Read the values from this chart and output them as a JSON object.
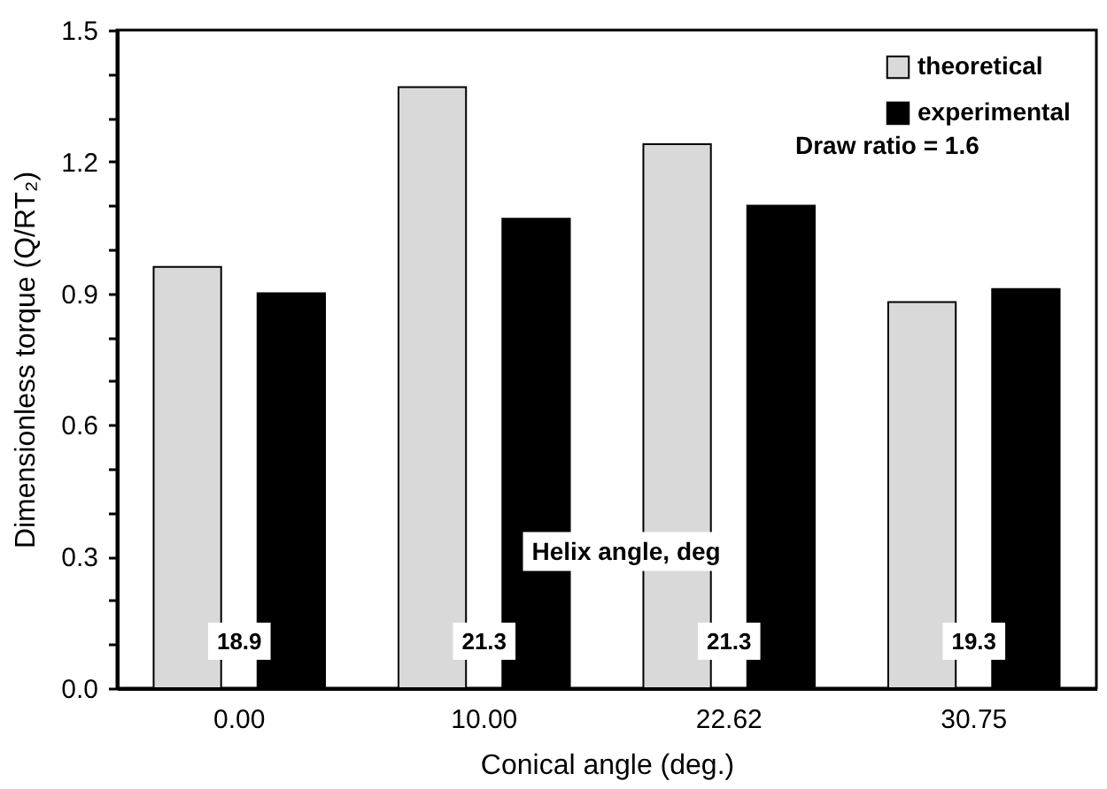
{
  "chart_data": {
    "type": "bar",
    "xlabel": "Conical angle (deg.)",
    "ylabel": "Dimensionless torque (Q/RT₂)",
    "categories": [
      "0.00",
      "10.00",
      "22.62",
      "30.75"
    ],
    "series": [
      {
        "name": "theoretical",
        "color": "#d9d9d9",
        "values": [
          0.96,
          1.37,
          1.24,
          0.88
        ]
      },
      {
        "name": "experimental",
        "color": "#000000",
        "values": [
          0.9,
          1.07,
          1.1,
          0.91
        ]
      }
    ],
    "ylim": [
      0,
      1.5
    ],
    "yticks": [
      {
        "value": 0,
        "label": "0.0"
      },
      {
        "value": 0.1,
        "label": null
      },
      {
        "value": 0.2,
        "label": null
      },
      {
        "value": 0.3,
        "label": "0.3"
      },
      {
        "value": 0.4,
        "label": null
      },
      {
        "value": 0.5,
        "label": null
      },
      {
        "value": 0.6,
        "label": "0.6"
      },
      {
        "value": 0.7,
        "label": null
      },
      {
        "value": 0.8,
        "label": null
      },
      {
        "value": 0.9,
        "label": "0.9"
      },
      {
        "value": 1.0,
        "label": null
      },
      {
        "value": 1.1,
        "label": null
      },
      {
        "value": 1.2,
        "label": "1.2"
      },
      {
        "value": 1.3,
        "label": null
      },
      {
        "value": 1.4,
        "label": null
      },
      {
        "value": 1.5,
        "label": "1.5"
      }
    ],
    "legend": "top right",
    "grid": false,
    "annotations": [
      "Helix angle, deg",
      "Draw ratio = 1.6",
      "18.9",
      "21.3",
      "21.3",
      "19.3"
    ]
  }
}
